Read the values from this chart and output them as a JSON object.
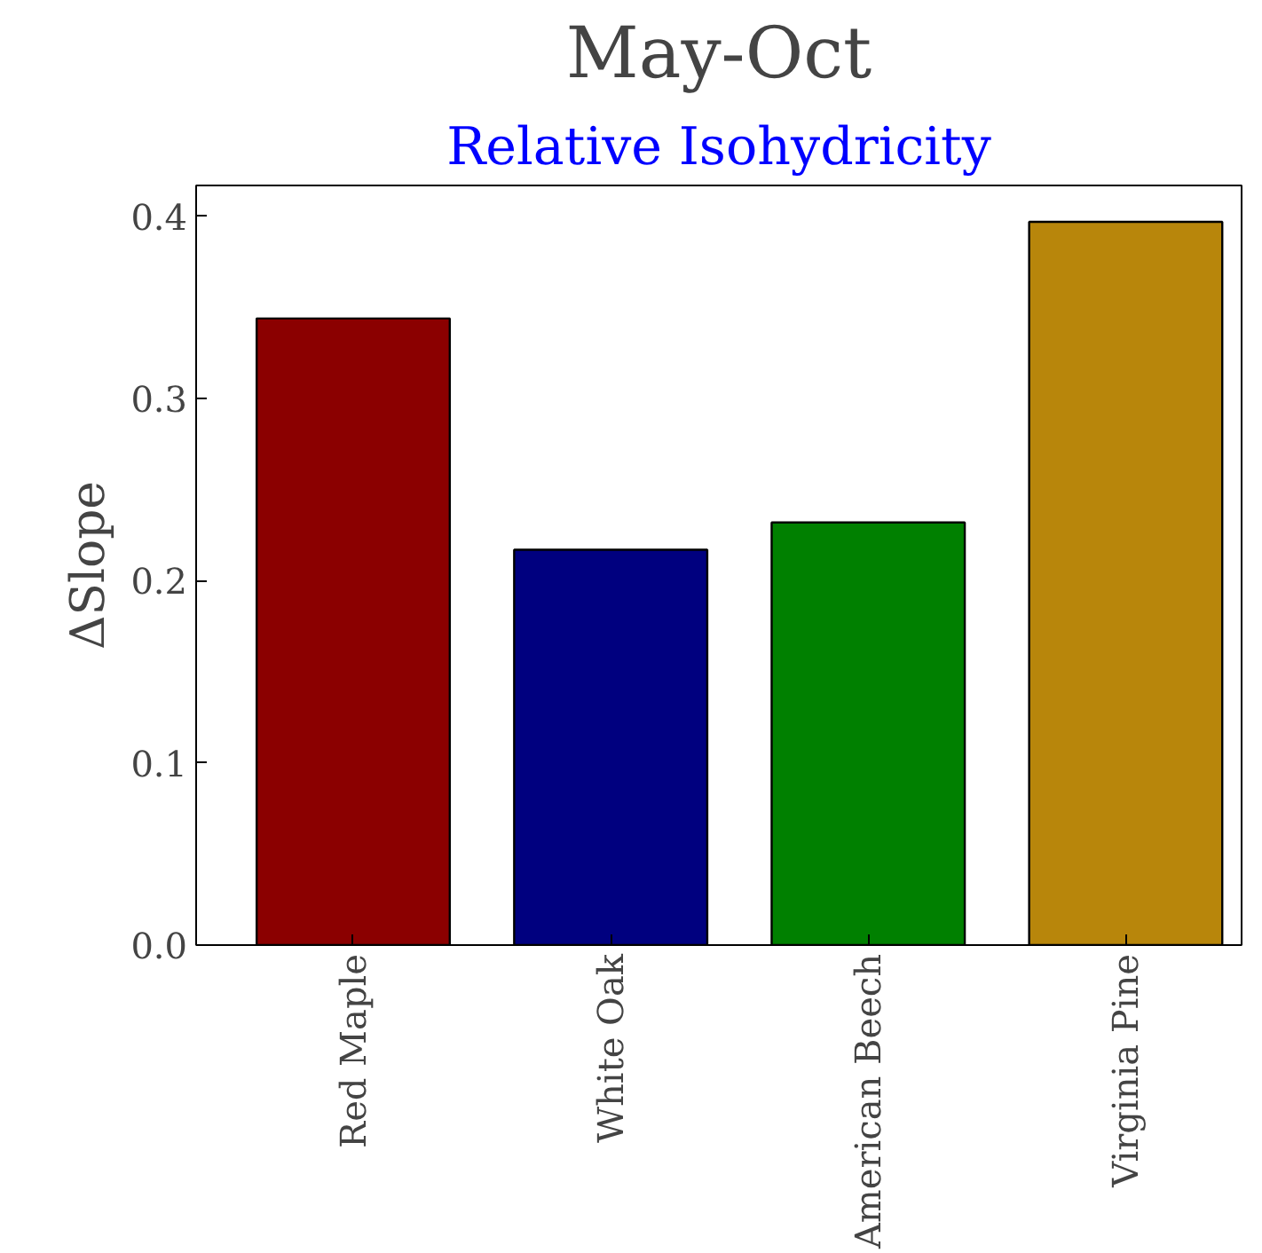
{
  "chart_data": {
    "type": "bar",
    "title": "May-Oct",
    "subtitle": "Relative Isohydricity",
    "ylabel": "ΔSlope",
    "categories": [
      "Red Maple",
      "White Oak",
      "American Beech",
      "Virginia Pine"
    ],
    "values": [
      0.344,
      0.217,
      0.232,
      0.397
    ],
    "colors": [
      "#8b0000",
      "#00007f",
      "#008000",
      "#b8860b"
    ],
    "ylim": [
      0,
      0.417
    ],
    "yticks": [
      {
        "value": 0,
        "label": "0.0"
      },
      {
        "value": 0.1,
        "label": "0.1"
      },
      {
        "value": 0.2,
        "label": "0.2"
      },
      {
        "value": 0.3,
        "label": "0.3"
      },
      {
        "value": 0.4,
        "label": "0.4"
      }
    ],
    "grid": false
  }
}
